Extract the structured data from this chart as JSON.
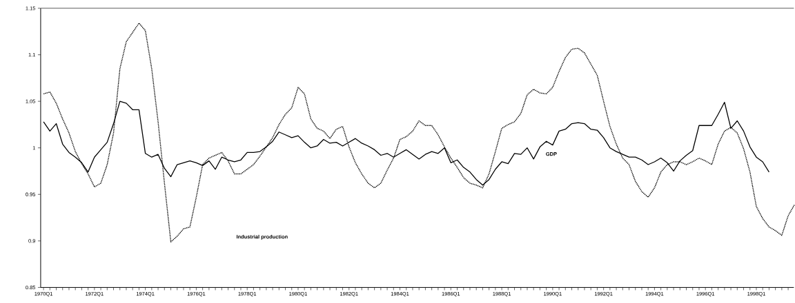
{
  "chart_data": {
    "type": "line",
    "categories": [
      "1970Q1",
      null,
      null,
      null,
      null,
      null,
      null,
      null,
      "1972Q1",
      null,
      null,
      null,
      null,
      null,
      null,
      null,
      "1974Q1",
      null,
      null,
      null,
      null,
      null,
      null,
      null,
      "1976Q1",
      null,
      null,
      null,
      null,
      null,
      null,
      null,
      "1978Q1",
      null,
      null,
      null,
      null,
      null,
      null,
      null,
      "1980Q1",
      null,
      null,
      null,
      null,
      null,
      null,
      null,
      "1982Q1",
      null,
      null,
      null,
      null,
      null,
      null,
      null,
      "1984Q1",
      null,
      null,
      null,
      null,
      null,
      null,
      null,
      "1986Q1",
      null,
      null,
      null,
      null,
      null,
      null,
      null,
      "1988Q1",
      null,
      null,
      null,
      null,
      null,
      null,
      null,
      "1990Q1",
      null,
      null,
      null,
      null,
      null,
      null,
      null,
      "1992Q1",
      null,
      null,
      null,
      null,
      null,
      null,
      null,
      "1994Q1",
      null,
      null,
      null,
      null,
      null,
      null,
      null,
      "1996Q1",
      null,
      null,
      null,
      null,
      null,
      null,
      null,
      "1998Q1",
      null,
      null,
      null,
      null,
      null,
      null
    ],
    "series": [
      {
        "color": "#000000",
        "line_style": "solid",
        "values": [
          1.028,
          1.018,
          1.026,
          1.004,
          0.995,
          0.99,
          0.984,
          0.974,
          0.99,
          0.998,
          1.006,
          1.026,
          1.05,
          1.048,
          1.041,
          1.041,
          0.994,
          0.99,
          0.993,
          0.978,
          0.969,
          0.982,
          0.984,
          0.986,
          0.984,
          0.981,
          0.986,
          0.977,
          0.99,
          0.987,
          0.985,
          0.987,
          0.995,
          0.995,
          0.996,
          1.001,
          1.007,
          1.017,
          1.014,
          1.011,
          1.013,
          1.006,
          1.0,
          1.002,
          1.009,
          1.005,
          1.006,
          1.002,
          1.006,
          1.01,
          1.005,
          1.002,
          0.998,
          0.992,
          0.994,
          0.99,
          0.994,
          0.998,
          0.993,
          0.988,
          0.993,
          0.996,
          0.994,
          1.0,
          0.984,
          0.987,
          0.979,
          0.974,
          0.966,
          0.96,
          0.966,
          0.977,
          0.985,
          0.983,
          0.994,
          0.993,
          1.0,
          0.988,
          1.001,
          1.007,
          1.003,
          1.018,
          1.02,
          1.026,
          1.027,
          1.026,
          1.02,
          1.019,
          1.011,
          1.0,
          0.996,
          0.993,
          0.99,
          0.99,
          0.987,
          0.982,
          0.985,
          0.989,
          0.984,
          0.975,
          0.986,
          0.992,
          0.997,
          1.024,
          1.024,
          1.024,
          1.036,
          1.049,
          1.021,
          1.029,
          1.018,
          1.001,
          0.99,
          0.985,
          0.974,
          null,
          null,
          null,
          null
        ]
      },
      {
        "color": "#000000",
        "line_style": "dotted",
        "values": [
          1.058,
          1.06,
          1.048,
          1.031,
          1.016,
          0.996,
          0.983,
          0.972,
          0.958,
          0.962,
          0.982,
          1.016,
          1.085,
          1.114,
          1.124,
          1.134,
          1.126,
          1.085,
          1.028,
          0.962,
          0.899,
          0.905,
          0.913,
          0.915,
          0.947,
          0.982,
          0.989,
          0.992,
          0.995,
          0.986,
          0.972,
          0.972,
          0.977,
          0.982,
          0.991,
          1.001,
          1.011,
          1.025,
          1.036,
          1.043,
          1.065,
          1.058,
          1.031,
          1.021,
          1.018,
          1.01,
          1.02,
          1.023,
          1.001,
          0.984,
          0.972,
          0.962,
          0.957,
          0.962,
          0.976,
          0.989,
          1.009,
          1.012,
          1.018,
          1.029,
          1.024,
          1.024,
          1.014,
          1.001,
          0.989,
          0.979,
          0.968,
          0.962,
          0.96,
          0.957,
          0.972,
          0.996,
          1.021,
          1.025,
          1.028,
          1.037,
          1.057,
          1.063,
          1.059,
          1.058,
          1.065,
          1.082,
          1.097,
          1.106,
          1.107,
          1.102,
          1.09,
          1.078,
          1.05,
          1.023,
          1.004,
          0.989,
          0.982,
          0.964,
          0.953,
          0.947,
          0.957,
          0.974,
          0.982,
          0.985,
          0.985,
          0.982,
          0.985,
          0.989,
          0.986,
          0.982,
          1.004,
          1.018,
          1.022,
          1.016,
          0.999,
          0.974,
          0.937,
          0.924,
          0.915,
          0.911,
          0.906,
          0.927,
          0.939
        ]
      }
    ],
    "ylim": [
      0.85,
      1.15
    ],
    "yticks": [
      0.85,
      0.9,
      0.95,
      1,
      1.05,
      1.1,
      1.15
    ],
    "annotations": [
      "Industrial production",
      "GDP"
    ],
    "marker": "none"
  }
}
